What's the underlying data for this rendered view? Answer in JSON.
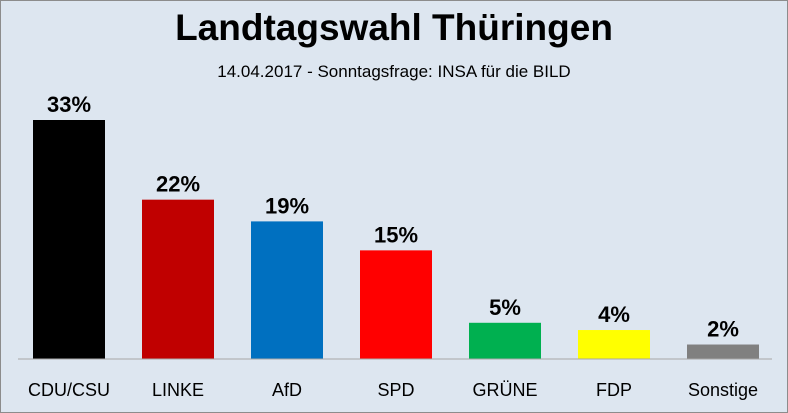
{
  "chart_data": {
    "type": "bar",
    "title": "Landtagswahl Thüringen",
    "subtitle": "14.04.2017 -  Sonntagsfrage: INSA für die BILD",
    "categories": [
      "CDU/CSU",
      "LINKE",
      "AfD",
      "SPD",
      "GRÜNE",
      "FDP",
      "Sonstige"
    ],
    "values": [
      33,
      22,
      19,
      15,
      5,
      4,
      2
    ],
    "value_labels": [
      "33%",
      "22%",
      "19%",
      "15%",
      "5%",
      "4%",
      "2%"
    ],
    "colors": [
      "#000000",
      "#c00000",
      "#0070c0",
      "#ff0000",
      "#00b050",
      "#ffff00",
      "#808080"
    ],
    "ylim": [
      0,
      33
    ],
    "xlabel": "",
    "ylabel": "",
    "grid": false,
    "legend": false
  }
}
